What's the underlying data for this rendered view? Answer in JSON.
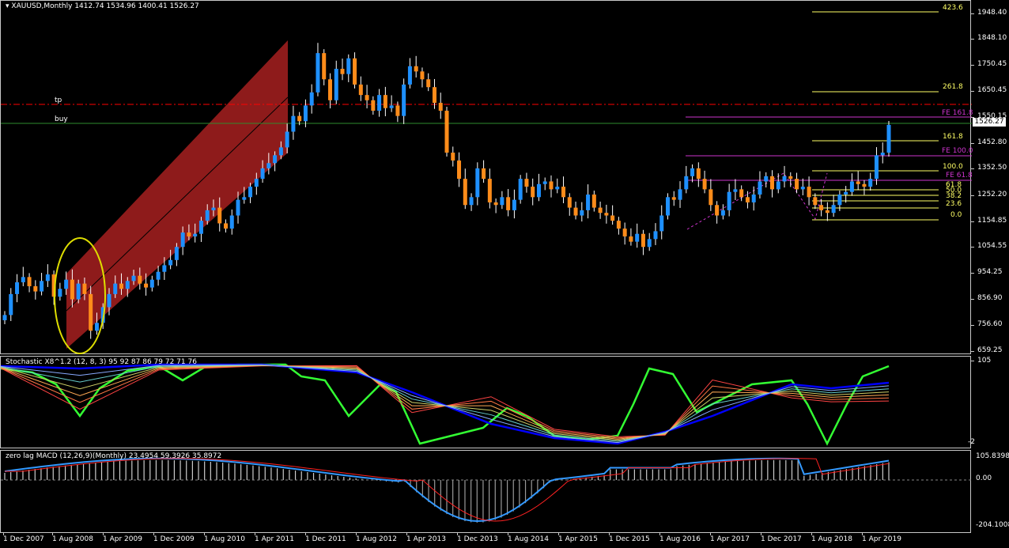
{
  "window": {
    "symbol_line": "XAUUSD,Monthly",
    "ohlc": "1412.74 1534.96 1400.41 1526.27"
  },
  "colors": {
    "bull": "#1e90ff",
    "bear": "#ff8c1a",
    "channel": "#b22222",
    "tp_line": "#ff0000",
    "buy_line": "#2e8b2e",
    "fib": "#ffff66",
    "fe": "#cc33cc",
    "stoch_fast": "#33ff33",
    "stoch_slow": "#0000ff",
    "macd_line": "#3399ff",
    "macd_signal": "#ff2222",
    "ellipse": "#dddd00"
  },
  "main": {
    "price_scale": [
      "1948.40",
      "1848.10",
      "1750.45",
      "1650.45",
      "1550.15",
      "1452.80",
      "1352.50",
      "1252.20",
      "1154.85",
      "1054.55",
      "954.25",
      "856.90",
      "756.60",
      "659.25"
    ],
    "current_price": "1526.27",
    "lines": {
      "tp_label": "tp",
      "buy_label": "buy"
    },
    "fib_levels": [
      "423.6",
      "261.8",
      "161.8",
      "100.0",
      "61.8",
      "50.0",
      "38.2",
      "23.6",
      "0.0"
    ],
    "fe_levels": [
      "FE 161.8",
      "FE 100.0",
      "FE 61.8"
    ]
  },
  "stochastic": {
    "label": "Stochastic X8^1.2 (12, 8, 3) 95 92 87 86 79 72 71 76",
    "scale_top": "105",
    "scale_bottom": "-2"
  },
  "macd": {
    "label": "zero lag MACD (12,26,9)(Monthly) 23.4954 59.3926 35.8972",
    "scale_top": "105.8398",
    "scale_zero": "0.00",
    "scale_bottom": "-204.1008"
  },
  "time_axis": [
    "1 Dec 2007",
    "1 Aug 2008",
    "1 Apr 2009",
    "1 Dec 2009",
    "1 Aug 2010",
    "1 Apr 2011",
    "1 Dec 2011",
    "1 Aug 2012",
    "1 Apr 2013",
    "1 Dec 2013",
    "1 Aug 2014",
    "1 Apr 2015",
    "1 Dec 2015",
    "1 Aug 2016",
    "1 Apr 2017",
    "1 Dec 2017",
    "1 Aug 2018",
    "1 Apr 2019"
  ]
}
